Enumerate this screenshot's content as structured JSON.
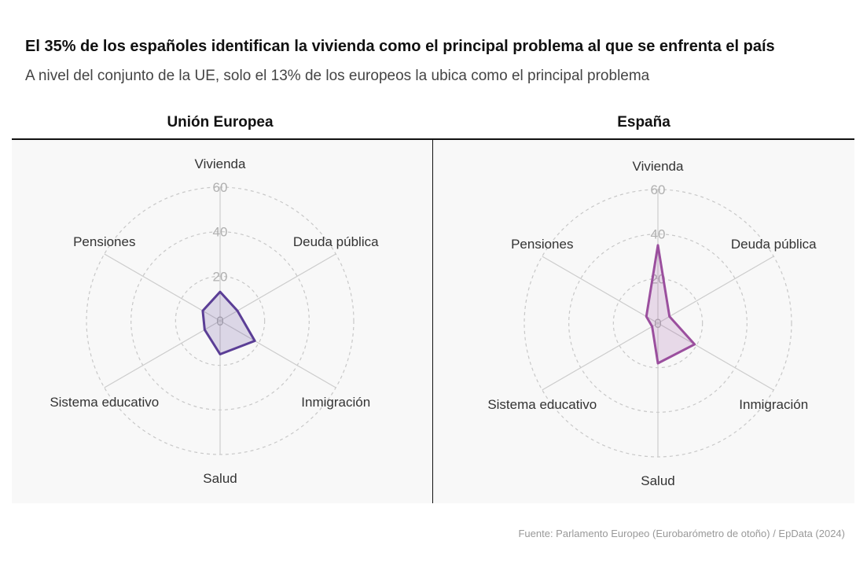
{
  "header": {
    "title": "El 35% de los españoles identifican la vivienda como el principal problema al que se enfrenta el país",
    "subtitle": "A nivel del conjunto de la UE, solo el 13% de los europeos la ubica como el principal problema"
  },
  "footer": {
    "source": "Fuente: Parlamento Europeo (Eurobarómetro de otoño)  / EpData (2024)"
  },
  "chart_data": [
    {
      "type": "radar",
      "title": "Unión Europea",
      "categories": [
        "Vivienda",
        "Deuda pública",
        "Inmigración",
        "Salud",
        "Sistema educativo",
        "Pensiones"
      ],
      "values": [
        13,
        9,
        18,
        15,
        8,
        9
      ],
      "rlim": [
        0,
        60
      ],
      "rticks": [
        0,
        20,
        40,
        60
      ],
      "grid": true,
      "color": "#5b3e96"
    },
    {
      "type": "radar",
      "title": "España",
      "categories": [
        "Vivienda",
        "Deuda pública",
        "Inmigración",
        "Salud",
        "Sistema educativo",
        "Pensiones"
      ],
      "values": [
        35,
        6,
        19,
        18,
        3,
        6
      ],
      "rlim": [
        0,
        60
      ],
      "rticks": [
        0,
        20,
        40,
        60
      ],
      "grid": true,
      "color": "#9b4f9e"
    }
  ]
}
